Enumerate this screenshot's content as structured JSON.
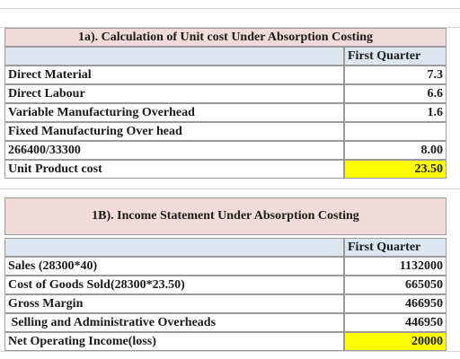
{
  "sections": [
    {
      "title": "1a). Calculation of Unit cost Under Absorption Costing",
      "header": "First Quarter",
      "rows": [
        [
          "Direct Material",
          "7.3"
        ],
        [
          "Direct Labour",
          "6.6"
        ],
        [
          "Variable Manufacturing Overhead",
          "1.6"
        ],
        [
          "Fixed Manufacturing Over head"
        ],
        [
          "266400/33300",
          "8.00"
        ],
        [
          "Unit Product cost",
          "23.50"
        ]
      ]
    },
    {
      "title": "1B). Income Statement Under Absorption Costing",
      "header": "First Quarter",
      "rows": [
        [
          "Sales (28300*40)",
          "1132000"
        ],
        [
          "Cost of Goods Sold(28300*23.50)",
          "665050"
        ],
        [
          "Gross Margin",
          "466950"
        ],
        [
          " Selling and Administrative Overheads",
          "446950"
        ],
        [
          "Net Operating Income(loss)",
          "20000"
        ]
      ]
    }
  ]
}
